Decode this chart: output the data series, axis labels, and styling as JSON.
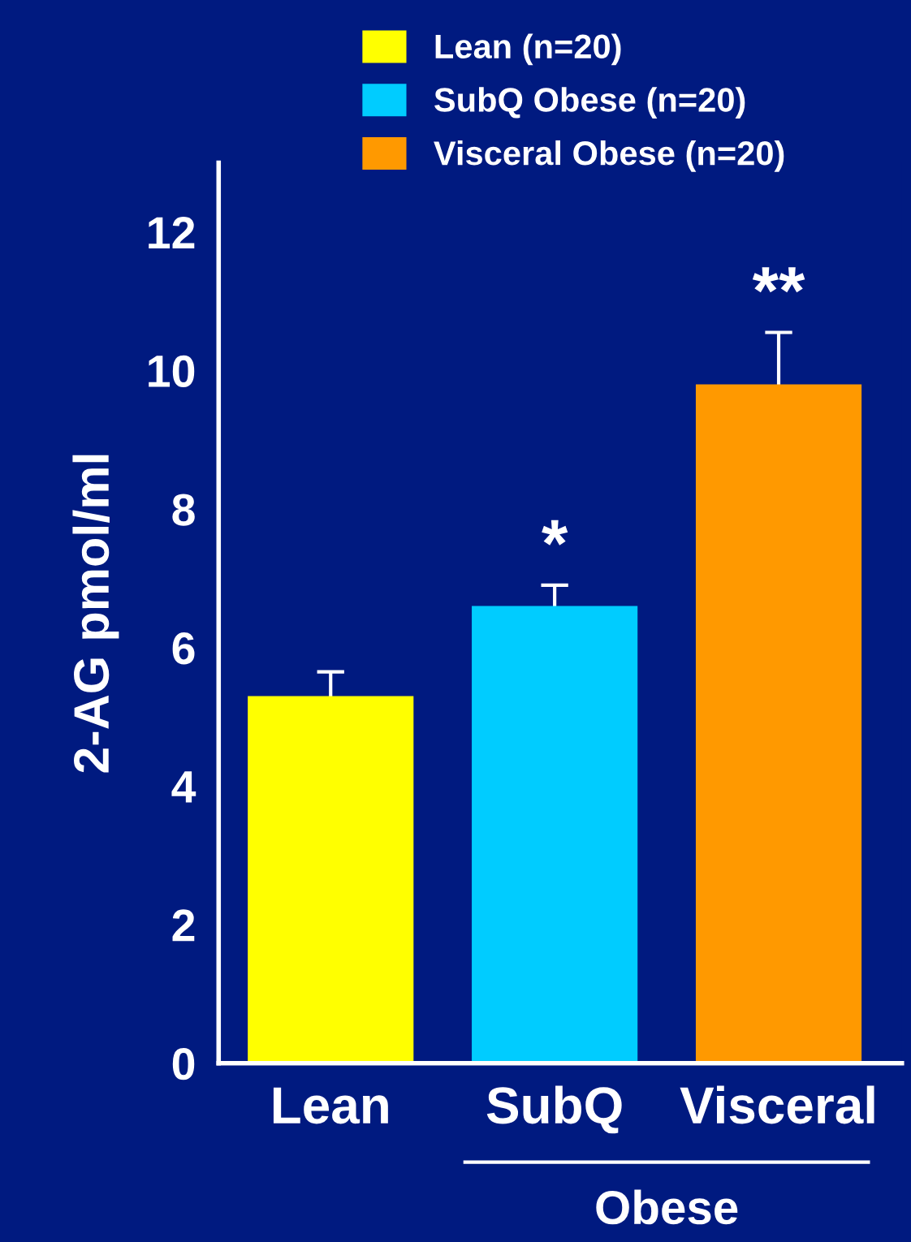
{
  "chart_data": {
    "type": "bar",
    "ylabel": "2-AG pmol/ml",
    "categories": [
      "Lean",
      "SubQ",
      "Visceral"
    ],
    "series": [
      {
        "name": "Lean (n=20)",
        "color": "#ffff00",
        "values": [
          5.3,
          null,
          null
        ],
        "errors": [
          0.35,
          null,
          null
        ]
      },
      {
        "name": "SubQ Obese (n=20)",
        "color": "#00ccff",
        "values": [
          null,
          6.6,
          null
        ],
        "errors": [
          null,
          0.3,
          null
        ]
      },
      {
        "name": "Visceral Obese (n=20)",
        "color": "#ff9900",
        "values": [
          null,
          null,
          9.8
        ],
        "errors": [
          null,
          null,
          0.75
        ]
      }
    ],
    "ylim": [
      0,
      13
    ],
    "yticks": [
      0,
      2,
      4,
      6,
      8,
      10,
      12
    ],
    "grid": false,
    "legend": "top",
    "annotations": [
      "*",
      "**",
      "Obese"
    ]
  }
}
